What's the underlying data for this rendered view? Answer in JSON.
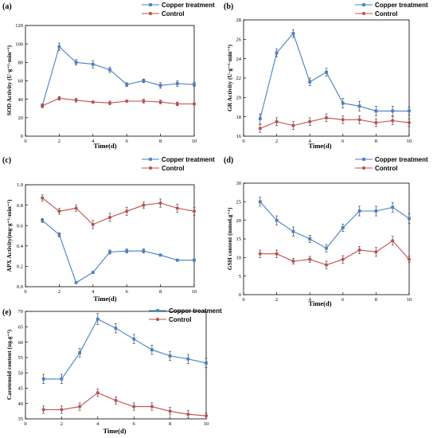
{
  "chart_data": [
    {
      "type": "line",
      "panel_label": "(a)",
      "xlabel": "Time(d)",
      "ylabel": "SOD Activity (U·g⁻¹·min⁻¹)",
      "x": [
        1,
        2,
        3,
        4,
        5,
        6,
        7,
        8,
        9,
        10
      ],
      "xticks": [
        0,
        2,
        4,
        6,
        8,
        10
      ],
      "xlim": [
        0,
        10
      ],
      "yticks": [
        0,
        20,
        40,
        60,
        80,
        100,
        120
      ],
      "ylim": [
        0,
        120
      ],
      "legend_position": "top-right",
      "series": [
        {
          "name": "Copper treatment",
          "color": "#4a7fc8",
          "values": [
            33,
            97,
            80,
            78,
            72,
            56,
            60,
            55,
            57,
            56
          ],
          "errors": [
            2,
            4,
            3,
            4,
            3,
            2,
            2,
            3,
            3,
            2
          ]
        },
        {
          "name": "Control",
          "color": "#c0504d",
          "values": [
            33,
            41,
            39,
            37,
            36,
            38,
            38,
            37,
            35,
            35
          ],
          "errors": [
            2,
            2,
            2,
            1,
            2,
            1,
            2,
            2,
            2,
            1
          ]
        }
      ]
    },
    {
      "type": "line",
      "panel_label": "(b)",
      "xlabel": "Time(d)",
      "ylabel": "GR Activity (U·g⁻¹·min⁻¹)",
      "x": [
        1,
        2,
        3,
        4,
        5,
        6,
        7,
        8,
        9,
        10
      ],
      "xticks": [
        0,
        2,
        4,
        6,
        8,
        10
      ],
      "xlim": [
        0,
        10
      ],
      "yticks": [
        16,
        18,
        20,
        22,
        24,
        26,
        28
      ],
      "ylim": [
        16,
        28
      ],
      "legend_position": "top-right",
      "series": [
        {
          "name": "Copper treatment",
          "color": "#4a7fc8",
          "values": [
            17.8,
            24.6,
            26.6,
            21.6,
            22.6,
            19.4,
            19.1,
            18.6,
            18.6,
            18.6
          ],
          "errors": [
            0.5,
            0.4,
            0.4,
            0.4,
            0.4,
            0.5,
            0.5,
            0.5,
            0.5,
            0.4
          ]
        },
        {
          "name": "Control",
          "color": "#c0504d",
          "values": [
            16.8,
            17.5,
            17.1,
            17.5,
            17.9,
            17.7,
            17.7,
            17.4,
            17.6,
            17.4
          ],
          "errors": [
            0.4,
            0.4,
            0.4,
            0.4,
            0.4,
            0.4,
            0.4,
            0.4,
            0.4,
            0.4
          ]
        }
      ]
    },
    {
      "type": "line",
      "panel_label": "(c)",
      "xlabel": "Time(d)",
      "ylabel": "APX Activity(mg·g⁻¹·min⁻¹)",
      "x": [
        1,
        2,
        3,
        4,
        5,
        6,
        7,
        8,
        9,
        10
      ],
      "xticks": [
        0,
        2,
        4,
        6,
        8,
        10
      ],
      "xlim": [
        0,
        10
      ],
      "yticks": [
        0.0,
        0.2,
        0.4,
        0.6,
        0.8,
        1.0
      ],
      "ylim": [
        0,
        1.0
      ],
      "legend_position": "top-right",
      "series": [
        {
          "name": "Copper treatment",
          "color": "#4a7fc8",
          "values": [
            0.65,
            0.51,
            0.04,
            0.14,
            0.34,
            0.35,
            0.35,
            0.31,
            0.26,
            0.26
          ],
          "errors": [
            0.02,
            0.02,
            0.01,
            0.01,
            0.02,
            0.02,
            0.02,
            0.01,
            0.01,
            0.01
          ]
        },
        {
          "name": "Control",
          "color": "#c0504d",
          "values": [
            0.87,
            0.74,
            0.77,
            0.61,
            0.68,
            0.74,
            0.8,
            0.82,
            0.77,
            0.74
          ],
          "errors": [
            0.03,
            0.03,
            0.03,
            0.04,
            0.04,
            0.04,
            0.03,
            0.04,
            0.04,
            0.04
          ]
        }
      ]
    },
    {
      "type": "line",
      "panel_label": "(d)",
      "xlabel": "Time(d)",
      "ylabel": "GSH content (mmol.g⁻¹)",
      "x": [
        1,
        2,
        3,
        4,
        5,
        6,
        7,
        8,
        9,
        10
      ],
      "xticks": [
        0,
        2,
        4,
        6,
        8,
        10
      ],
      "xlim": [
        0,
        10
      ],
      "yticks": [
        0,
        5,
        10,
        15,
        20,
        25,
        30
      ],
      "ylim": [
        0,
        30
      ],
      "legend_position": "top-right",
      "series": [
        {
          "name": "Copper treatment",
          "color": "#4a7fc8",
          "values": [
            25,
            20,
            17,
            15,
            12.5,
            18,
            22.5,
            22.5,
            23.5,
            20.5
          ],
          "errors": [
            1.2,
            1.2,
            1.2,
            1.0,
            1.0,
            1.0,
            1.3,
            1.3,
            1.3,
            1.3
          ]
        },
        {
          "name": "Control",
          "color": "#c0504d",
          "values": [
            11,
            11,
            9,
            9.5,
            8,
            9.5,
            12,
            11.5,
            14.5,
            9.5
          ],
          "errors": [
            1.0,
            1.0,
            0.8,
            0.8,
            1.0,
            1.0,
            1.0,
            1.2,
            1.2,
            0.8
          ]
        }
      ]
    },
    {
      "type": "line",
      "panel_label": "(e)",
      "xlabel": "Time(d)",
      "ylabel": "Carotenoid content (ug.g⁻¹)",
      "x": [
        1,
        2,
        3,
        4,
        5,
        6,
        7,
        8,
        9,
        10
      ],
      "xticks": [
        0,
        2,
        4,
        6,
        8,
        10
      ],
      "xlim": [
        0,
        10
      ],
      "yticks": [
        35,
        40,
        45,
        50,
        55,
        60,
        65,
        70
      ],
      "ylim": [
        35,
        70
      ],
      "legend_position": "top-right",
      "series": [
        {
          "name": "Copper treatment",
          "color": "#4a7fc8",
          "values": [
            48,
            48,
            56.5,
            67.5,
            64.5,
            61,
            57.5,
            55.5,
            54.5,
            53.2
          ],
          "errors": [
            1.5,
            1.5,
            1.5,
            1.8,
            1.5,
            1.5,
            1.5,
            1.5,
            1.5,
            1.5
          ]
        },
        {
          "name": "Control",
          "color": "#c0504d",
          "values": [
            38,
            38,
            39,
            43.5,
            41,
            39,
            39,
            37.5,
            36.5,
            36
          ],
          "errors": [
            1.2,
            1.2,
            1.2,
            1.2,
            1.2,
            1.2,
            1.2,
            1.2,
            1.2,
            1.0
          ]
        }
      ]
    }
  ]
}
